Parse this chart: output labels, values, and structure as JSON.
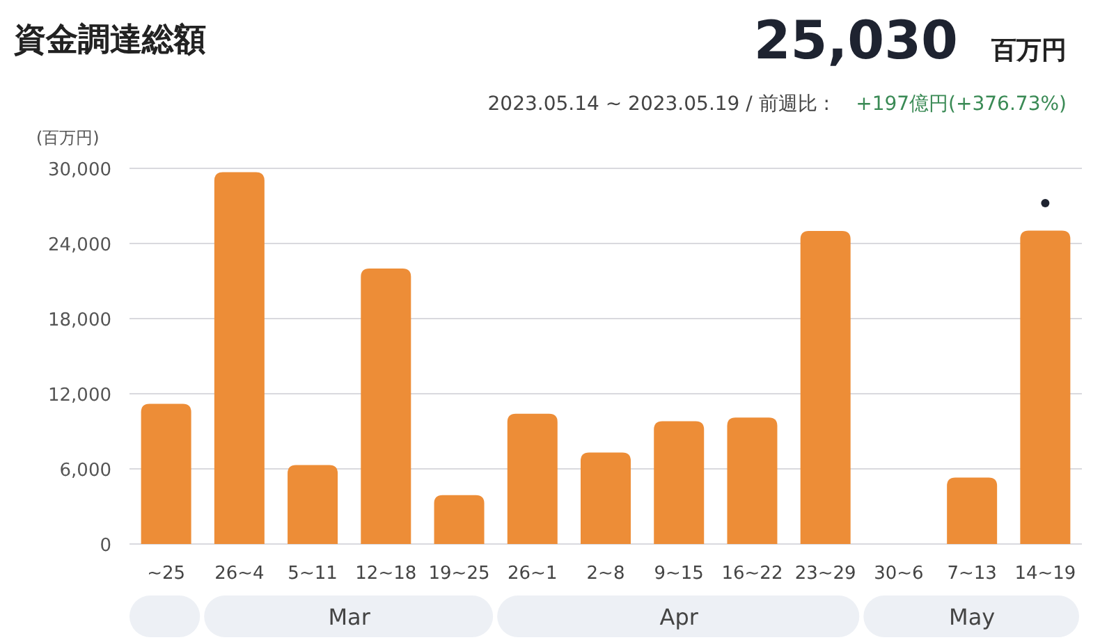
{
  "chart_data": {
    "type": "bar",
    "title": "資金調達総額",
    "ylabel": "(百万円)",
    "categories": [
      "~25",
      "26~4",
      "5~11",
      "12~18",
      "19~25",
      "26~1",
      "2~8",
      "9~15",
      "16~22",
      "23~29",
      "30~6",
      "7~13",
      "14~19"
    ],
    "values": [
      11200,
      29700,
      6300,
      22000,
      3900,
      10400,
      7300,
      9800,
      10100,
      25000,
      0,
      5300,
      25030
    ],
    "color": "#ed8d37",
    "ylim": [
      0,
      30000
    ],
    "yticks": [
      {
        "value": 0,
        "label": "0"
      },
      {
        "value": 6000,
        "label": "6,000"
      },
      {
        "value": 12000,
        "label": "12,000"
      },
      {
        "value": 18000,
        "label": "18,000"
      },
      {
        "value": 24000,
        "label": "24,000"
      },
      {
        "value": 30000,
        "label": "30,000"
      }
    ],
    "grid": "y",
    "annotations": [
      "25,030",
      "百万円",
      "2023.05.14 ~ 2023.05.19 / 前週比 :",
      "+197億円(+376.73%)",
      "Mar",
      "Apr",
      "May"
    ]
  }
}
